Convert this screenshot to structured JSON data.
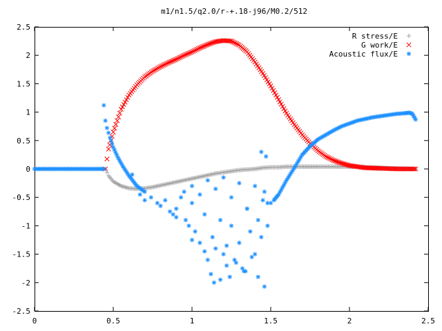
{
  "chart_data": {
    "type": "scatter",
    "title": "m1/n1.5/q2.0/r-+.18-j96/M0.2/512",
    "xlabel": "",
    "ylabel": "",
    "xlim": [
      0,
      2.5
    ],
    "ylim": [
      -2.5,
      2.5
    ],
    "xticks": [
      "0",
      "0.5",
      "1",
      "1.5",
      "2",
      "2.5"
    ],
    "yticks": [
      "2.5",
      "2",
      "1.5",
      "1",
      "0.5",
      "0",
      "-0.5",
      "-1",
      "-1.5",
      "-2",
      "-2.5"
    ],
    "grid": false,
    "legend_position": "top-right",
    "series": [
      {
        "name": "R stress/E",
        "marker": "plus",
        "color": "#a0a0a0",
        "x": [
          0.45,
          0.47,
          0.5,
          0.55,
          0.6,
          0.65,
          0.7,
          0.75,
          0.8,
          0.85,
          0.9,
          0.95,
          1.0,
          1.05,
          1.1,
          1.15,
          1.2,
          1.25,
          1.3,
          1.35,
          1.4,
          1.45,
          1.5,
          1.55,
          1.6,
          1.7,
          1.8,
          1.9,
          2.0,
          2.1,
          2.2,
          2.3,
          2.42
        ],
        "y": [
          0.0,
          -0.12,
          -0.22,
          -0.3,
          -0.34,
          -0.35,
          -0.34,
          -0.32,
          -0.29,
          -0.26,
          -0.23,
          -0.2,
          -0.17,
          -0.14,
          -0.11,
          -0.08,
          -0.06,
          -0.04,
          -0.02,
          -0.01,
          0.0,
          0.02,
          0.03,
          0.03,
          0.04,
          0.04,
          0.04,
          0.04,
          0.04,
          0.03,
          0.02,
          0.01,
          0.0
        ]
      },
      {
        "name": "G work/E",
        "marker": "cross",
        "color": "#ff0000",
        "x": [
          0.45,
          0.47,
          0.5,
          0.55,
          0.6,
          0.65,
          0.7,
          0.75,
          0.8,
          0.85,
          0.9,
          0.95,
          1.0,
          1.05,
          1.1,
          1.15,
          1.2,
          1.25,
          1.3,
          1.35,
          1.4,
          1.45,
          1.5,
          1.55,
          1.6,
          1.65,
          1.7,
          1.75,
          1.8,
          1.85,
          1.9,
          1.95,
          2.0,
          2.05,
          2.1,
          2.2,
          2.3,
          2.42
        ],
        "y": [
          0.0,
          0.35,
          0.65,
          1.05,
          1.3,
          1.48,
          1.62,
          1.72,
          1.8,
          1.87,
          1.93,
          2.0,
          2.06,
          2.13,
          2.19,
          2.24,
          2.26,
          2.25,
          2.18,
          2.06,
          1.88,
          1.68,
          1.46,
          1.22,
          0.98,
          0.78,
          0.6,
          0.45,
          0.32,
          0.22,
          0.15,
          0.1,
          0.06,
          0.04,
          0.02,
          0.01,
          0.0,
          0.0
        ]
      },
      {
        "name": "Acoustic flux/E",
        "marker": "star",
        "color": "#1e90ff",
        "x": [
          0.0,
          0.05,
          0.1,
          0.15,
          0.2,
          0.25,
          0.3,
          0.35,
          0.4,
          0.44,
          0.44,
          0.45,
          0.46,
          0.48,
          0.5,
          0.53,
          0.56,
          0.6,
          0.65,
          0.7,
          0.62,
          0.67,
          0.7,
          0.74,
          0.78,
          0.8,
          0.83,
          0.86,
          0.88,
          0.9,
          0.93,
          0.96,
          0.98,
          1.0,
          1.02,
          1.05,
          1.08,
          1.1,
          1.13,
          1.15,
          1.18,
          1.2,
          1.22,
          1.25,
          1.27,
          1.3,
          1.33,
          1.35,
          1.37,
          1.4,
          1.42,
          1.44,
          1.46,
          1.48,
          1.5,
          0.9,
          0.95,
          1.0,
          1.05,
          1.1,
          1.15,
          1.2,
          1.25,
          1.3,
          1.35,
          1.4,
          1.45,
          1.48,
          1.0,
          1.08,
          1.12,
          1.18,
          1.22,
          1.28,
          1.32,
          1.38,
          1.42,
          1.46,
          1.14,
          1.24,
          1.34,
          1.44,
          1.47,
          1.52,
          1.55,
          1.6,
          1.65,
          1.7,
          1.75,
          1.8,
          1.85,
          1.9,
          1.95,
          2.0,
          2.05,
          2.1,
          2.15,
          2.2,
          2.25,
          2.3,
          2.35,
          2.38,
          2.4,
          2.42
        ],
        "y": [
          0.0,
          0.0,
          0.0,
          0.0,
          0.0,
          0.0,
          0.0,
          0.0,
          0.0,
          1.12,
          0.0,
          0.85,
          0.72,
          0.55,
          0.38,
          0.2,
          0.05,
          -0.12,
          -0.3,
          -0.4,
          -0.1,
          -0.45,
          -0.55,
          -0.5,
          -0.6,
          -0.65,
          -0.55,
          -0.75,
          -0.8,
          -0.7,
          -0.5,
          -0.9,
          -1.0,
          -0.6,
          -1.1,
          -1.3,
          -0.8,
          -1.6,
          -1.2,
          -1.4,
          -0.9,
          -1.5,
          -1.7,
          -1.0,
          -1.6,
          -1.3,
          -1.8,
          -0.7,
          -1.1,
          -1.5,
          -0.9,
          -1.2,
          -0.4,
          -1.0,
          -0.6,
          -0.85,
          -0.4,
          -0.3,
          -0.45,
          -0.2,
          -0.35,
          -0.15,
          -0.5,
          -0.25,
          -0.7,
          -0.3,
          -0.55,
          -0.6,
          -1.25,
          -1.45,
          -1.85,
          -1.95,
          -1.35,
          -1.65,
          -1.75,
          -1.55,
          -1.9,
          -2.07,
          -2.0,
          -1.9,
          -1.8,
          0.3,
          0.22,
          -0.55,
          -0.45,
          -0.2,
          0.02,
          0.25,
          0.4,
          0.52,
          0.6,
          0.68,
          0.75,
          0.8,
          0.85,
          0.88,
          0.91,
          0.93,
          0.95,
          0.97,
          0.98,
          0.99,
          0.97,
          0.87
        ]
      }
    ]
  }
}
